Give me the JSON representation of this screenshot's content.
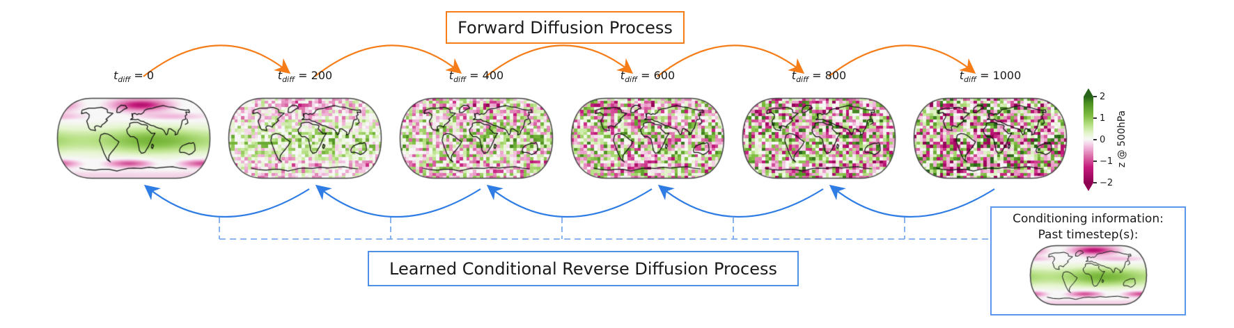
{
  "forward_label": "Forward Diffusion Process",
  "reverse_label": "Learned Conditional Reverse Diffusion Process",
  "timesteps": [
    {
      "var": "t",
      "sub": "diff",
      "eq": "=",
      "value": "0",
      "noise": 0.0
    },
    {
      "var": "t",
      "sub": "diff",
      "eq": "=",
      "value": "200",
      "noise": 0.5
    },
    {
      "var": "t",
      "sub": "diff",
      "eq": "=",
      "value": "400",
      "noise": 0.72
    },
    {
      "var": "t",
      "sub": "diff",
      "eq": "=",
      "value": "600",
      "noise": 0.85
    },
    {
      "var": "t",
      "sub": "diff",
      "eq": "=",
      "value": "800",
      "noise": 0.93
    },
    {
      "var": "t",
      "sub": "diff",
      "eq": "=",
      "value": "1000",
      "noise": 1.0
    }
  ],
  "colorbar": {
    "ticks": [
      "2",
      "1",
      "0",
      "−1",
      "−2"
    ],
    "label": "z @ 500hPa",
    "vmin": -2,
    "vmax": 2
  },
  "conditioning": {
    "line1": "Conditioning information:",
    "line2": "Past timestep(s):",
    "noise": 0.0
  },
  "colors": {
    "forward_accent": "#f57c17",
    "reverse_accent": "#2e7ce4",
    "reverse_dashed": "#7aaaf0",
    "colormap_low": "#8e0152",
    "colormap_mid": "#f7f7f7",
    "colormap_high": "#276419"
  }
}
